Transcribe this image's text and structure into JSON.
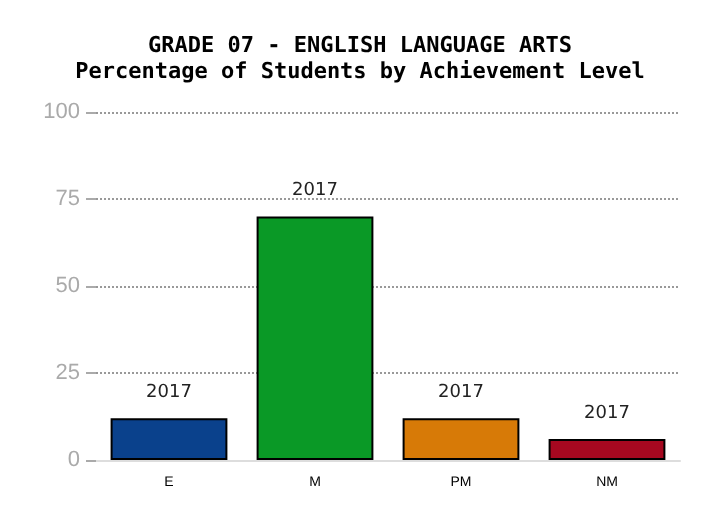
{
  "chart_data": {
    "type": "bar",
    "title": "GRADE 07 - ENGLISH LANGUAGE ARTS",
    "subtitle": "Percentage of Students by Achievement Level",
    "categories": [
      "E",
      "M",
      "PM",
      "NM"
    ],
    "values": [
      12,
      70,
      12,
      6
    ],
    "colors": [
      "#0a418c",
      "#0a9926",
      "#d77a07",
      "#a60820"
    ],
    "annotations": [
      {
        "text": "2017",
        "x": "E",
        "y": 12
      },
      {
        "text": "2017",
        "x": "M",
        "y": 70
      },
      {
        "text": "2017",
        "x": "PM",
        "y": 12
      },
      {
        "text": "2017",
        "x": "NM",
        "y": 6
      }
    ],
    "ylim": [
      0,
      100
    ],
    "yticks": [
      0,
      25,
      50,
      75,
      100
    ],
    "grid": "y"
  }
}
